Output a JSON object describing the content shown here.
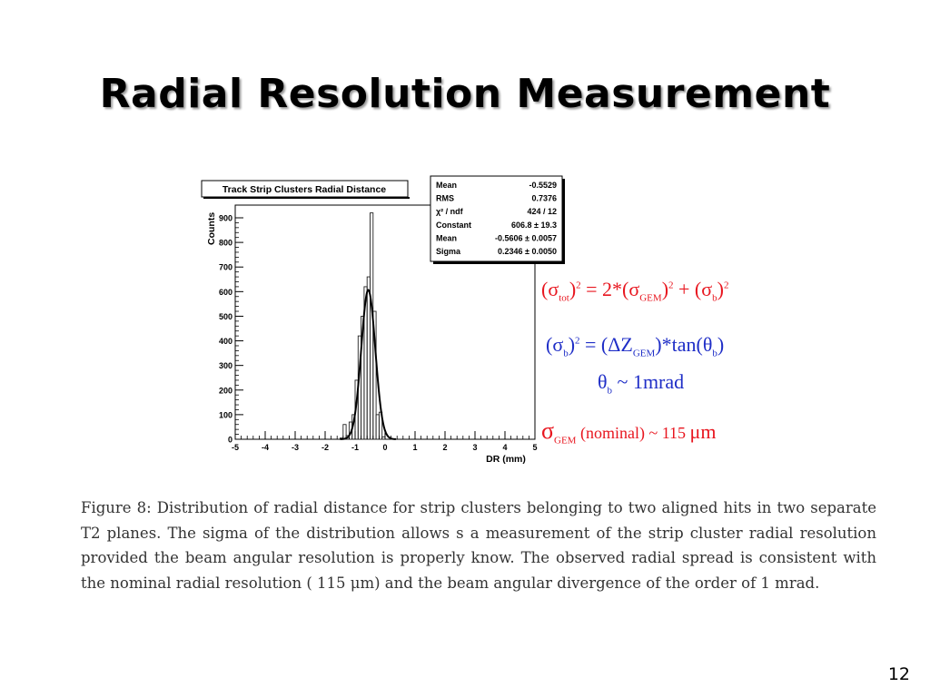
{
  "slide": {
    "title": "Radial Resolution Measurement",
    "caption": "Figure 8: Distribution of radial distance for strip clusters belonging to two aligned hits in two separate T2 planes. The sigma of the distribution allows s a measurement of the strip cluster radial resolution provided the beam angular resolution is properly know. The observed radial spread is consistent with the nominal radial resolution ( 115 μm) and the beam angular divergence of the order of 1 mrad.",
    "page_number": "12"
  },
  "equations": {
    "eq1": {
      "color": "#e8161f",
      "sigma": "σ",
      "tot": "tot",
      "eq_part": " = 2*(σ",
      "gem": "GEM",
      "plus_part": " + (σ",
      "b": "b",
      "sq": "2"
    },
    "eq2": {
      "color": "#1f2ec7",
      "sigma": "σ",
      "b": "b",
      "sq": "2",
      "eq_part": " = (ΔZ",
      "gem": "GEM",
      "tan_part": ")*tan(θ",
      "close": ")"
    },
    "eq3": {
      "color": "#1f2ec7",
      "theta": "θ",
      "b": "b",
      "rest": " ~ 1mrad"
    },
    "eq4": {
      "color": "#e8161f",
      "sigma": "σ",
      "gem": "GEM",
      "nominal": " (nominal) ~ 115 ",
      "unit": "μm"
    }
  },
  "chart_data": {
    "type": "bar",
    "title": "Track Strip Clusters Radial Distance",
    "xlabel": "DR (mm)",
    "ylabel": "Counts",
    "xlim": [
      -5,
      5
    ],
    "ylim": [
      0,
      900
    ],
    "xticks": [
      -5,
      -4,
      -3,
      -2,
      -1,
      0,
      1,
      2,
      3,
      4,
      5
    ],
    "yticks": [
      0,
      100,
      200,
      300,
      400,
      500,
      600,
      700,
      800,
      900
    ],
    "histogram": {
      "bin_edges": [
        -1.5,
        -1.4,
        -1.3,
        -1.2,
        -1.1,
        -1.0,
        -0.9,
        -0.8,
        -0.7,
        -0.6,
        -0.5,
        -0.4,
        -0.3,
        -0.2,
        -0.1,
        0.0
      ],
      "counts": [
        5,
        60,
        15,
        70,
        100,
        240,
        420,
        500,
        620,
        660,
        920,
        520,
        100,
        110,
        10
      ]
    },
    "fit": {
      "type": "gaussian",
      "constant": 606.8,
      "mean": -0.5606,
      "sigma": 0.2346
    },
    "stats_box": [
      {
        "label": "Mean",
        "value": "-0.5529"
      },
      {
        "label": "RMS",
        "value": "0.7376"
      },
      {
        "label": "χ² / ndf",
        "value": "424 / 12"
      },
      {
        "label": "Constant",
        "value": "606.8 ± 19.3"
      },
      {
        "label": "Mean",
        "value": "-0.5606 ± 0.0057"
      },
      {
        "label": "Sigma",
        "value": "0.2346 ± 0.0050"
      }
    ],
    "grid": false
  }
}
